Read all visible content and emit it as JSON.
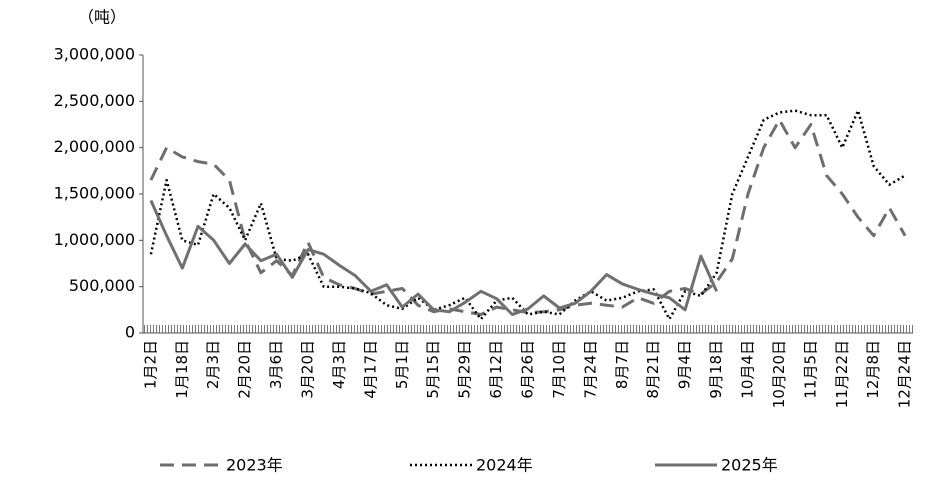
{
  "chart_data": {
    "type": "line",
    "y_label": "（吨）",
    "categories": [
      "1月2日",
      null,
      "1月18日",
      null,
      "2月3日",
      null,
      "2月20日",
      null,
      "3月6日",
      null,
      "3月20日",
      null,
      "4月3日",
      null,
      "4月17日",
      null,
      "5月1日",
      null,
      "5月15日",
      null,
      "5月29日",
      null,
      "6月12日",
      null,
      "6月26日",
      null,
      "7月10日",
      null,
      "7月24日",
      null,
      "8月7日",
      null,
      "8月21日",
      null,
      "9月4日",
      null,
      "9月18日",
      null,
      "10月4日",
      null,
      "10月20日",
      null,
      "11月5日",
      null,
      "11月22日",
      null,
      "12月8日",
      null,
      "12月24日"
    ],
    "series": [
      {
        "name": "2023年",
        "color": "#6e6e6e",
        "dash": "dashed",
        "values": [
          1650000,
          2000000,
          1900000,
          1850000,
          1820000,
          1650000,
          1000000,
          650000,
          780000,
          620000,
          980000,
          600000,
          520000,
          480000,
          420000,
          450000,
          480000,
          300000,
          230000,
          260000,
          230000,
          200000,
          280000,
          250000,
          220000,
          230000,
          250000,
          300000,
          320000,
          300000,
          280000,
          380000,
          320000,
          450000,
          480000,
          420000,
          550000,
          800000,
          1500000,
          2000000,
          2300000,
          2000000,
          2250000,
          1700000,
          1500000,
          1250000,
          1050000,
          1350000,
          1050000
        ]
      },
      {
        "name": "2024年",
        "color": "#000000",
        "dash": "dotted",
        "values": [
          850000,
          1650000,
          1000000,
          950000,
          1500000,
          1350000,
          1000000,
          1400000,
          800000,
          780000,
          850000,
          500000,
          500000,
          480000,
          430000,
          300000,
          260000,
          380000,
          250000,
          300000,
          380000,
          150000,
          350000,
          380000,
          200000,
          230000,
          200000,
          350000,
          450000,
          350000,
          380000,
          450000,
          470000,
          150000,
          450000,
          400000,
          650000,
          1500000,
          1900000,
          2300000,
          2380000,
          2400000,
          2350000,
          2350000,
          2000000,
          2400000,
          1800000,
          1600000,
          1700000
        ]
      },
      {
        "name": "2025年",
        "color": "#707070",
        "dash": "solid",
        "values": [
          1430000,
          1050000,
          700000,
          1150000,
          1000000,
          750000,
          960000,
          780000,
          850000,
          600000,
          900000,
          850000,
          730000,
          620000,
          450000,
          520000,
          280000,
          420000,
          250000,
          230000,
          330000,
          450000,
          370000,
          200000,
          260000,
          400000,
          270000,
          320000,
          450000,
          630000,
          530000,
          470000,
          420000,
          380000,
          250000,
          830000,
          450000,
          null,
          null,
          null,
          null,
          null,
          null,
          null,
          null,
          null,
          null,
          null,
          null
        ]
      }
    ],
    "ylim": [
      0,
      3000000
    ],
    "yticks": [
      0,
      {
        "value": 500000,
        "label": "500,000"
      },
      {
        "value": 1000000,
        "label": "1,000,000"
      },
      {
        "value": 1500000,
        "label": "1,500,000"
      },
      {
        "value": 2000000,
        "label": "2,000,000"
      },
      {
        "value": 2500000,
        "label": "2,500,000"
      },
      {
        "value": 3000000,
        "label": "3,000,000"
      }
    ],
    "grid": false
  }
}
